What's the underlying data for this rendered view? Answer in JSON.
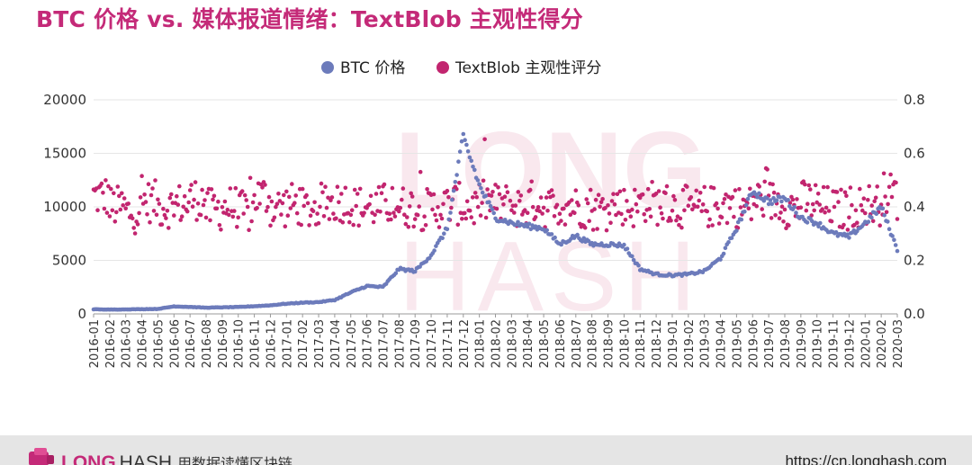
{
  "title": "BTC 价格 vs. 媒体报道情绪：TextBlob 主观性得分",
  "colors": {
    "title": "#c42a78",
    "btc": "#6c7bbb",
    "textblob": "#c2256f",
    "grid": "#e6e6e6",
    "watermark": "#f8e4ec"
  },
  "watermark": [
    "LONG",
    "HASH"
  ],
  "footer": {
    "brand_strong": "LONG",
    "brand_light": "HASH",
    "brand_tag": "用数据读懂区块链",
    "url": "https://cn.longhash.com"
  },
  "chart_data": {
    "type": "scatter",
    "title": "BTC 价格 vs. 媒体报道情绪：TextBlob 主观性得分",
    "legend_position": "top-center",
    "grid": true,
    "x_ticks": [
      "2016-01",
      "2016-02",
      "2016-03",
      "2016-04",
      "2016-05",
      "2016-06",
      "2016-07",
      "2016-08",
      "2016-09",
      "2016-10",
      "2016-11",
      "2016-12",
      "2017-01",
      "2017-02",
      "2017-03",
      "2017-04",
      "2017-05",
      "2017-06",
      "2017-07",
      "2017-08",
      "2017-09",
      "2017-10",
      "2017-11",
      "2017-12",
      "2018-01",
      "2018-02",
      "2018-03",
      "2018-04",
      "2018-05",
      "2018-06",
      "2018-07",
      "2018-08",
      "2018-09",
      "2018-10",
      "2018-11",
      "2018-12",
      "2019-01",
      "2019-02",
      "2019-03",
      "2019-04",
      "2019-05",
      "2019-06",
      "2019-07",
      "2019-08",
      "2019-09",
      "2019-10",
      "2019-11",
      "2019-12",
      "2020-01",
      "2020-02",
      "2020-03"
    ],
    "y_left": {
      "ticks": [
        "0",
        "5000",
        "10000",
        "15000",
        "20000"
      ],
      "range": [
        0,
        20000
      ]
    },
    "y_right": {
      "ticks": [
        "0.0",
        "0.2",
        "0.4",
        "0.6",
        "0.8"
      ],
      "range": [
        0,
        0.8
      ]
    },
    "series": [
      {
        "name": "BTC 价格",
        "axis": "left",
        "color": "#6c7bbb",
        "points": [
          [
            "2016-01",
            430
          ],
          [
            "2016-02",
            400
          ],
          [
            "2016-03",
            420
          ],
          [
            "2016-04",
            440
          ],
          [
            "2016-05",
            460
          ],
          [
            "2016-06",
            700
          ],
          [
            "2016-07",
            650
          ],
          [
            "2016-08",
            580
          ],
          [
            "2016-09",
            610
          ],
          [
            "2016-10",
            640
          ],
          [
            "2016-11",
            720
          ],
          [
            "2016-12",
            800
          ],
          [
            "2017-01",
            950
          ],
          [
            "2017-02",
            1050
          ],
          [
            "2017-03",
            1100
          ],
          [
            "2017-04",
            1300
          ],
          [
            "2017-05",
            2000
          ],
          [
            "2017-06",
            2600
          ],
          [
            "2017-07",
            2500
          ],
          [
            "2017-08",
            4200
          ],
          [
            "2017-09",
            4000
          ],
          [
            "2017-10",
            5500
          ],
          [
            "2017-11",
            8000
          ],
          [
            "2017-12",
            16500
          ],
          [
            "2018-01",
            12000
          ],
          [
            "2018-02",
            9000
          ],
          [
            "2018-03",
            8500
          ],
          [
            "2018-04",
            8200
          ],
          [
            "2018-05",
            8000
          ],
          [
            "2018-06",
            6500
          ],
          [
            "2018-07",
            7300
          ],
          [
            "2018-08",
            6500
          ],
          [
            "2018-09",
            6500
          ],
          [
            "2018-10",
            6400
          ],
          [
            "2018-11",
            4200
          ],
          [
            "2018-12",
            3700
          ],
          [
            "2019-01",
            3600
          ],
          [
            "2019-02",
            3700
          ],
          [
            "2019-03",
            4000
          ],
          [
            "2019-04",
            5200
          ],
          [
            "2019-05",
            8000
          ],
          [
            "2019-06",
            11500
          ],
          [
            "2019-07",
            10500
          ],
          [
            "2019-08",
            10800
          ],
          [
            "2019-09",
            9000
          ],
          [
            "2019-10",
            8500
          ],
          [
            "2019-11",
            7500
          ],
          [
            "2019-12",
            7200
          ],
          [
            "2020-01",
            8500
          ],
          [
            "2020-02",
            10000
          ],
          [
            "2020-03",
            6000
          ]
        ]
      },
      {
        "name": "TextBlob 主观性评分",
        "axis": "right",
        "color": "#c2256f",
        "points": [
          [
            "2016-01",
            0.44
          ],
          [
            "2016-02",
            0.4
          ],
          [
            "2016-03",
            0.38
          ],
          [
            "2016-04",
            0.42
          ],
          [
            "2016-05",
            0.4
          ],
          [
            "2016-06",
            0.41
          ],
          [
            "2016-07",
            0.43
          ],
          [
            "2016-08",
            0.39
          ],
          [
            "2016-09",
            0.4
          ],
          [
            "2016-10",
            0.38
          ],
          [
            "2016-11",
            0.44
          ],
          [
            "2016-12",
            0.4
          ],
          [
            "2017-01",
            0.41
          ],
          [
            "2017-02",
            0.39
          ],
          [
            "2017-03",
            0.41
          ],
          [
            "2017-04",
            0.42
          ],
          [
            "2017-05",
            0.4
          ],
          [
            "2017-06",
            0.4
          ],
          [
            "2017-07",
            0.41
          ],
          [
            "2017-08",
            0.4
          ],
          [
            "2017-09",
            0.39
          ],
          [
            "2017-10",
            0.4
          ],
          [
            "2017-11",
            0.41
          ],
          [
            "2017-12",
            0.4
          ],
          [
            "2018-01",
            0.42
          ],
          [
            "2018-02",
            0.41
          ],
          [
            "2018-03",
            0.4
          ],
          [
            "2018-04",
            0.42
          ],
          [
            "2018-05",
            0.4
          ],
          [
            "2018-06",
            0.41
          ],
          [
            "2018-07",
            0.4
          ],
          [
            "2018-08",
            0.39
          ],
          [
            "2018-09",
            0.41
          ],
          [
            "2018-10",
            0.4
          ],
          [
            "2018-11",
            0.42
          ],
          [
            "2018-12",
            0.41
          ],
          [
            "2019-01",
            0.4
          ],
          [
            "2019-02",
            0.39
          ],
          [
            "2019-03",
            0.4
          ],
          [
            "2019-04",
            0.41
          ],
          [
            "2019-05",
            0.4
          ],
          [
            "2019-06",
            0.43
          ],
          [
            "2019-07",
            0.42
          ],
          [
            "2019-08",
            0.4
          ],
          [
            "2019-09",
            0.42
          ],
          [
            "2019-10",
            0.4
          ],
          [
            "2019-11",
            0.39
          ],
          [
            "2019-12",
            0.4
          ],
          [
            "2020-01",
            0.41
          ],
          [
            "2020-02",
            0.45
          ],
          [
            "2020-03",
            0.4
          ]
        ]
      }
    ]
  }
}
